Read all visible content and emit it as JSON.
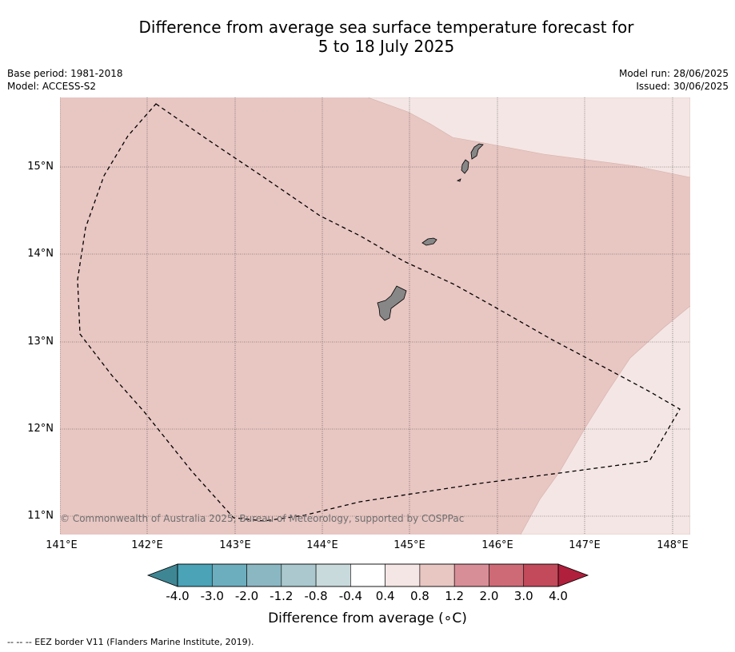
{
  "title_line1": "Difference from average sea surface temperature forecast for",
  "title_line2": "5 to 18 July 2025",
  "meta_left": [
    "Base period: 1981-2018",
    "Model: ACCESS-S2"
  ],
  "meta_right": [
    "Model run: 28/06/2025",
    "Issued: 30/06/2025"
  ],
  "map": {
    "lon_range": [
      141.0,
      148.2
    ],
    "lat_range": [
      10.8,
      15.8
    ],
    "lat_ticks": [
      "15°N",
      "14°N",
      "13°N",
      "12°N",
      "11°N"
    ],
    "lon_ticks": [
      "141°E",
      "142°E",
      "143°E",
      "144°E",
      "145°E",
      "146°E",
      "147°E",
      "148°E"
    ],
    "copyright": "© Commonwealth of Australia 2025, Bureau of Meteorology, supported by COSPPac",
    "colors": {
      "anomaly_0_8_to_1_2": "#e8c6c2",
      "anomaly_0_4_to_0_8": "#f4e6e4",
      "land": "#878787"
    }
  },
  "colorbar": {
    "label": "Difference from average (∘C)",
    "ticks": [
      "-4.0",
      "-3.0",
      "-2.0",
      "-1.2",
      "-0.8",
      "-0.4",
      "0.4",
      "0.8",
      "1.2",
      "2.0",
      "3.0",
      "4.0"
    ],
    "colors": [
      "#4aa3b6",
      "#6caebe",
      "#8bb7c3",
      "#aac8cd",
      "#c9dadd",
      "#ffffff",
      "#f4e6e4",
      "#e8c6c2",
      "#d88e96",
      "#cd6a76",
      "#c24a5a"
    ],
    "low_extend_color": "#3f8694",
    "high_extend_color": "#b01f3c"
  },
  "footnote": "-- -- -- EEZ border V11 (Flanders Marine Institute, 2019)."
}
